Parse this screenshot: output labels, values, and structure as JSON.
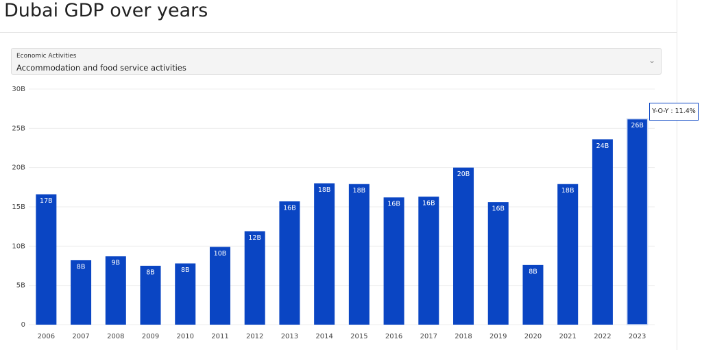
{
  "title": "Dubai GDP over years",
  "dropdown": {
    "label": "Economic Activities",
    "value": "Accommodation and food service activities"
  },
  "tooltip": "Y-O-Y : 11.4%",
  "chart_data": {
    "type": "bar",
    "categories": [
      "2006",
      "2007",
      "2008",
      "2009",
      "2010",
      "2011",
      "2012",
      "2013",
      "2014",
      "2015",
      "2016",
      "2017",
      "2018",
      "2019",
      "2020",
      "2021",
      "2022",
      "2023"
    ],
    "values": [
      16.6,
      8.2,
      8.7,
      7.5,
      7.8,
      9.9,
      11.9,
      15.7,
      18.0,
      17.9,
      16.2,
      16.3,
      20.0,
      15.6,
      7.6,
      17.9,
      23.6,
      26.2
    ],
    "value_labels": [
      "17B",
      "8B",
      "9B",
      "8B",
      "8B",
      "10B",
      "12B",
      "16B",
      "18B",
      "18B",
      "16B",
      "16B",
      "20B",
      "16B",
      "8B",
      "18B",
      "24B",
      "26B"
    ],
    "color": "#0a45c3",
    "ylim": [
      0,
      30
    ],
    "yticks": [
      0,
      {
        "value": 5,
        "label": "5B"
      },
      {
        "value": 10,
        "label": "10B"
      },
      {
        "value": 15,
        "label": "15B"
      },
      {
        "value": 20,
        "label": "20B"
      },
      {
        "value": 25,
        "label": "25B"
      },
      {
        "value": 30,
        "label": "30B"
      }
    ],
    "grid": true
  }
}
